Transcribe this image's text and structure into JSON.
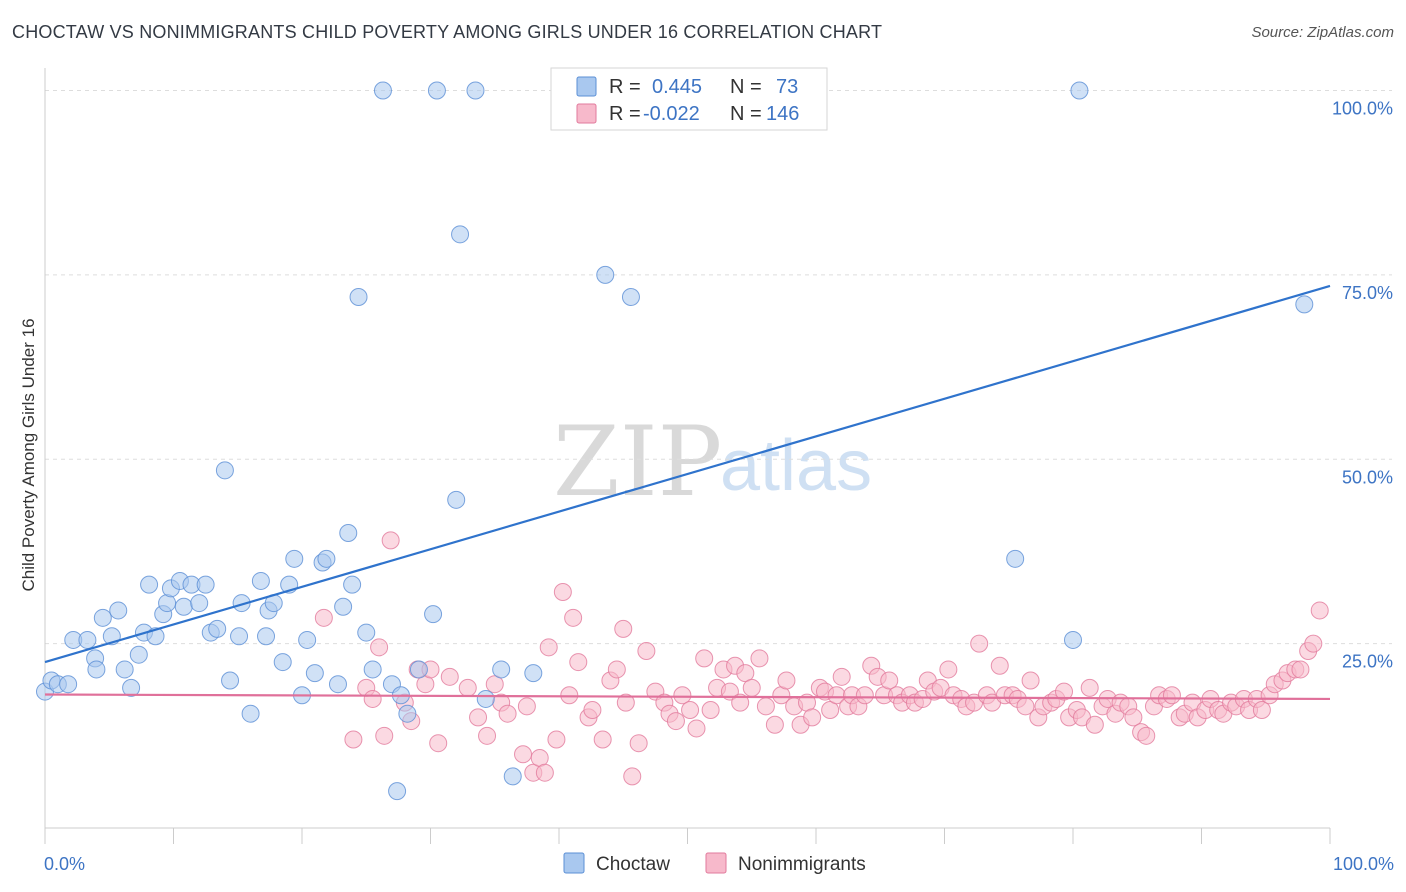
{
  "header": {
    "title": "CHOCTAW VS NONIMMIGRANTS CHILD POVERTY AMONG GIRLS UNDER 16 CORRELATION CHART",
    "source": "Source: ZipAtlas.com"
  },
  "watermark": {
    "zip": "ZIP",
    "atlas": "atlas"
  },
  "legend": {
    "rows": [
      {
        "r_label": "R =",
        "r_value": "0.445",
        "n_label": "N =",
        "n_value": "73"
      },
      {
        "r_label": "R =",
        "r_value": "-0.022",
        "n_label": "N =",
        "n_value": "146"
      }
    ]
  },
  "colors": {
    "choctaw_fill": "#a9c8ef",
    "choctaw_stroke": "#5b8fd6",
    "choctaw_line": "#2f73cc",
    "nonimm_fill": "#f7b9cb",
    "nonimm_stroke": "#e27a9c",
    "nonimm_line": "#e0709a",
    "tick_text": "#3d74c4",
    "grid": "#dddddd"
  },
  "chart_data": {
    "type": "scatter",
    "title": "CHOCTAW VS NONIMMIGRANTS CHILD POVERTY AMONG GIRLS UNDER 16 CORRELATION CHART",
    "xlabel": "",
    "ylabel": "Child Poverty Among Girls Under 16",
    "xlim": [
      0,
      100
    ],
    "ylim": [
      0,
      104
    ],
    "x_tick_labels": [
      "0.0%",
      "100.0%"
    ],
    "y_ticks": [
      25,
      50,
      75,
      100
    ],
    "y_tick_labels": [
      "25.0%",
      "50.0%",
      "75.0%",
      "100.0%"
    ],
    "grid": "horizontal dashed",
    "legend_position": "top-center",
    "series": [
      {
        "name": "Choctaw",
        "R": 0.445,
        "N": 73,
        "trend": {
          "x": [
            0,
            100
          ],
          "y": [
            22.5,
            73.5
          ]
        },
        "points": [
          [
            0,
            18.5
          ],
          [
            0.5,
            20
          ],
          [
            1,
            19.5
          ],
          [
            1.8,
            19.5
          ],
          [
            2.2,
            25.5
          ],
          [
            3.3,
            25.5
          ],
          [
            3.9,
            23
          ],
          [
            4,
            21.5
          ],
          [
            4.5,
            28.5
          ],
          [
            5.2,
            26
          ],
          [
            5.7,
            29.5
          ],
          [
            6.2,
            21.5
          ],
          [
            6.7,
            19
          ],
          [
            7.3,
            23.5
          ],
          [
            7.7,
            26.5
          ],
          [
            8.1,
            33
          ],
          [
            8.6,
            26
          ],
          [
            9.2,
            29
          ],
          [
            9.5,
            30.5
          ],
          [
            9.8,
            32.5
          ],
          [
            10.5,
            33.5
          ],
          [
            10.8,
            30
          ],
          [
            11.4,
            33
          ],
          [
            12,
            30.5
          ],
          [
            12.5,
            33
          ],
          [
            12.9,
            26.5
          ],
          [
            13.4,
            27
          ],
          [
            14,
            48.5
          ],
          [
            14.4,
            20
          ],
          [
            15.1,
            26
          ],
          [
            15.3,
            30.5
          ],
          [
            16,
            15.5
          ],
          [
            16.8,
            33.5
          ],
          [
            17.2,
            26
          ],
          [
            17.4,
            29.5
          ],
          [
            17.8,
            30.5
          ],
          [
            18.5,
            22.5
          ],
          [
            19,
            33
          ],
          [
            19.4,
            36.5
          ],
          [
            20,
            18
          ],
          [
            20.4,
            25.5
          ],
          [
            21,
            21
          ],
          [
            21.6,
            36
          ],
          [
            21.9,
            36.5
          ],
          [
            22.8,
            19.5
          ],
          [
            23.2,
            30
          ],
          [
            23.6,
            40
          ],
          [
            23.9,
            33
          ],
          [
            24.4,
            72
          ],
          [
            25,
            26.5
          ],
          [
            25.5,
            21.5
          ],
          [
            26.3,
            100
          ],
          [
            27,
            19.5
          ],
          [
            27.4,
            5
          ],
          [
            27.7,
            18
          ],
          [
            28.2,
            15.5
          ],
          [
            29.1,
            21.5
          ],
          [
            30.2,
            29
          ],
          [
            30.5,
            100
          ],
          [
            32,
            44.5
          ],
          [
            32.3,
            80.5
          ],
          [
            33.5,
            100
          ],
          [
            34.3,
            17.5
          ],
          [
            35.5,
            21.5
          ],
          [
            36.4,
            7
          ],
          [
            38,
            21
          ],
          [
            43.6,
            75
          ],
          [
            45.6,
            72
          ],
          [
            50.5,
            100
          ],
          [
            75.5,
            36.5
          ],
          [
            80,
            25.5
          ],
          [
            80.5,
            100
          ],
          [
            98,
            71
          ]
        ]
      },
      {
        "name": "Nonimmigrants",
        "R": -0.022,
        "N": 146,
        "trend": {
          "x": [
            0,
            100
          ],
          "y": [
            18.1,
            17.5
          ]
        },
        "points": [
          [
            21.7,
            28.5
          ],
          [
            24,
            12
          ],
          [
            25,
            19
          ],
          [
            25.5,
            17.5
          ],
          [
            26,
            24.5
          ],
          [
            26.4,
            12.5
          ],
          [
            26.9,
            39
          ],
          [
            28,
            17
          ],
          [
            28.5,
            14.5
          ],
          [
            29,
            21.5
          ],
          [
            29.6,
            19.5
          ],
          [
            30,
            21.5
          ],
          [
            30.6,
            11.5
          ],
          [
            31.5,
            20.5
          ],
          [
            32.9,
            19
          ],
          [
            33.7,
            15
          ],
          [
            34.4,
            12.5
          ],
          [
            35,
            19.5
          ],
          [
            35.5,
            17
          ],
          [
            36,
            15.5
          ],
          [
            37.2,
            10
          ],
          [
            37.5,
            16.5
          ],
          [
            38,
            7.5
          ],
          [
            38.5,
            9.5
          ],
          [
            38.9,
            7.5
          ],
          [
            39.2,
            24.5
          ],
          [
            39.8,
            12
          ],
          [
            40.3,
            32
          ],
          [
            40.8,
            18
          ],
          [
            41.1,
            28.5
          ],
          [
            41.5,
            22.5
          ],
          [
            42.3,
            15
          ],
          [
            42.6,
            16
          ],
          [
            43.4,
            12
          ],
          [
            44,
            20
          ],
          [
            44.5,
            21.5
          ],
          [
            45,
            27
          ],
          [
            45.2,
            17
          ],
          [
            45.7,
            7
          ],
          [
            46.2,
            11.5
          ],
          [
            46.8,
            24
          ],
          [
            47.5,
            18.5
          ],
          [
            48.2,
            17
          ],
          [
            48.6,
            15.5
          ],
          [
            49.1,
            14.5
          ],
          [
            49.6,
            18
          ],
          [
            50.2,
            16
          ],
          [
            50.7,
            13.5
          ],
          [
            51.3,
            23
          ],
          [
            51.8,
            16
          ],
          [
            52.3,
            19
          ],
          [
            52.8,
            21.5
          ],
          [
            53.3,
            18.5
          ],
          [
            53.7,
            22
          ],
          [
            54.1,
            17
          ],
          [
            54.5,
            21
          ],
          [
            55,
            19
          ],
          [
            55.6,
            23
          ],
          [
            56.1,
            16.5
          ],
          [
            56.8,
            14
          ],
          [
            57.3,
            18
          ],
          [
            57.7,
            20
          ],
          [
            58.3,
            16.5
          ],
          [
            58.8,
            14
          ],
          [
            59.3,
            17
          ],
          [
            59.7,
            15
          ],
          [
            60.3,
            19
          ],
          [
            60.7,
            18.5
          ],
          [
            61.1,
            16
          ],
          [
            61.6,
            18
          ],
          [
            62,
            20.5
          ],
          [
            62.5,
            16.5
          ],
          [
            62.8,
            18
          ],
          [
            63.3,
            16.5
          ],
          [
            63.8,
            18
          ],
          [
            64.3,
            22
          ],
          [
            64.8,
            20.5
          ],
          [
            65.3,
            18
          ],
          [
            65.7,
            20
          ],
          [
            66.3,
            18
          ],
          [
            66.7,
            17
          ],
          [
            67.3,
            18
          ],
          [
            67.7,
            17
          ],
          [
            68.3,
            17.5
          ],
          [
            68.7,
            20
          ],
          [
            69.2,
            18.5
          ],
          [
            69.7,
            19
          ],
          [
            70.3,
            21.5
          ],
          [
            70.7,
            18
          ],
          [
            71.3,
            17.5
          ],
          [
            71.7,
            16.5
          ],
          [
            72.3,
            17
          ],
          [
            72.7,
            25
          ],
          [
            73.3,
            18
          ],
          [
            73.7,
            17
          ],
          [
            74.3,
            22
          ],
          [
            74.7,
            18
          ],
          [
            75.3,
            18
          ],
          [
            75.7,
            17.5
          ],
          [
            76.3,
            16.5
          ],
          [
            76.7,
            20
          ],
          [
            77.3,
            15
          ],
          [
            77.7,
            16.5
          ],
          [
            78.3,
            17
          ],
          [
            78.7,
            17.5
          ],
          [
            79.3,
            18.5
          ],
          [
            79.7,
            15
          ],
          [
            80.3,
            16
          ],
          [
            80.7,
            15
          ],
          [
            81.3,
            19
          ],
          [
            81.7,
            14
          ],
          [
            82.3,
            16.5
          ],
          [
            82.7,
            17.5
          ],
          [
            83.3,
            15.5
          ],
          [
            83.7,
            17
          ],
          [
            84.3,
            16.5
          ],
          [
            84.7,
            15
          ],
          [
            85.3,
            13
          ],
          [
            85.7,
            12.5
          ],
          [
            86.3,
            16.5
          ],
          [
            86.7,
            18
          ],
          [
            87.3,
            17.5
          ],
          [
            87.7,
            18
          ],
          [
            88.3,
            15
          ],
          [
            88.7,
            15.5
          ],
          [
            89.3,
            17
          ],
          [
            89.7,
            15
          ],
          [
            90.3,
            16
          ],
          [
            90.7,
            17.5
          ],
          [
            91.3,
            16
          ],
          [
            91.7,
            15.5
          ],
          [
            92.3,
            17
          ],
          [
            92.7,
            16.5
          ],
          [
            93.3,
            17.5
          ],
          [
            93.7,
            16
          ],
          [
            94.3,
            17.5
          ],
          [
            94.7,
            16
          ],
          [
            95.3,
            18
          ],
          [
            95.7,
            19.5
          ],
          [
            96.3,
            20
          ],
          [
            96.7,
            21
          ],
          [
            97.3,
            21.5
          ],
          [
            97.7,
            21.5
          ],
          [
            98.3,
            24
          ],
          [
            98.7,
            25
          ],
          [
            99.2,
            29.5
          ]
        ]
      }
    ]
  },
  "bottom_legend": {
    "choctaw": "Choctaw",
    "nonimmigrants": "Nonimmigrants"
  }
}
